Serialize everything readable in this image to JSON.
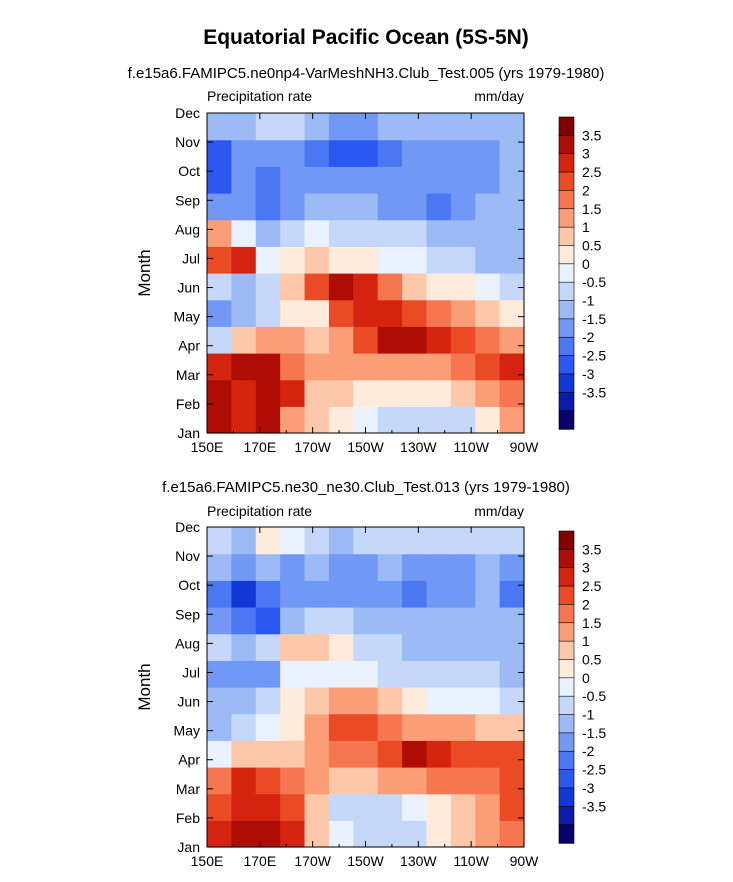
{
  "figure_title": "Equatorial Pacific Ocean (5S-5N)",
  "chart_data": [
    {
      "type": "heatmap",
      "subtitle": "f.e15a6.FAMIPC5.ne0np4-VarMeshNH3.Club_Test.005 (yrs 1979-1980)",
      "left_label": "Precipitation rate",
      "right_label": "mm/day",
      "ylabel": "Month",
      "x_ticks": [
        "150E",
        "170E",
        "170W",
        "150W",
        "130W",
        "110W",
        "90W"
      ],
      "y_ticks": [
        "Jan",
        "Feb",
        "Mar",
        "Apr",
        "May",
        "Jun",
        "Jul",
        "Aug",
        "Sep",
        "Oct",
        "Nov",
        "Dec"
      ],
      "colorbar_labels": [
        "3.5",
        "3",
        "2.5",
        "2",
        "1.5",
        "1",
        "0.5",
        "0",
        "-0.5",
        "-1",
        "-1.5",
        "-2",
        "-2.5",
        "-3",
        "-3.5"
      ],
      "x": [
        "150E",
        "160E",
        "170E",
        "180",
        "170W",
        "160W",
        "150W",
        "140W",
        "130W",
        "120W",
        "110W",
        "100W",
        "90W"
      ],
      "y": [
        "Jan",
        "Feb",
        "Mar",
        "Apr",
        "May",
        "Jun",
        "Jul",
        "Aug",
        "Sep",
        "Oct",
        "Nov",
        "Dec"
      ],
      "z": [
        [
          3.5,
          3.0,
          3.5,
          1.5,
          1.0,
          0.5,
          0.0,
          -0.5,
          -0.5,
          -0.5,
          -0.3,
          0.5,
          1.5
        ],
        [
          4.0,
          3.0,
          4.0,
          3.0,
          1.0,
          1.0,
          0.5,
          0.5,
          0.5,
          0.5,
          1.0,
          1.5,
          2.0
        ],
        [
          3.0,
          4.0,
          3.5,
          2.0,
          1.5,
          1.5,
          1.5,
          1.5,
          1.5,
          1.5,
          2.0,
          2.5,
          3.0
        ],
        [
          -0.5,
          1.0,
          1.5,
          1.5,
          1.0,
          1.5,
          2.5,
          4.0,
          3.5,
          3.0,
          2.5,
          2.0,
          1.5
        ],
        [
          -1.5,
          -1.0,
          -0.5,
          0.5,
          0.5,
          2.5,
          3.0,
          3.0,
          2.5,
          2.0,
          1.5,
          1.0,
          0.5
        ],
        [
          -0.5,
          -1.0,
          -0.5,
          1.0,
          2.5,
          3.5,
          3.0,
          2.0,
          1.0,
          0.5,
          0.5,
          0.0,
          -0.5
        ],
        [
          2.5,
          3.0,
          0.0,
          0.5,
          1.0,
          0.5,
          0.5,
          0.0,
          0.0,
          -0.5,
          -0.5,
          -1.0,
          -1.0
        ],
        [
          1.5,
          0.0,
          -1.0,
          -0.5,
          0.0,
          -0.5,
          -0.5,
          -0.5,
          -0.5,
          -1.0,
          -1.0,
          -1.0,
          -1.0
        ],
        [
          -1.5,
          -1.5,
          -2.0,
          -1.5,
          -1.0,
          -1.0,
          -1.0,
          -1.5,
          -1.5,
          -2.0,
          -1.5,
          -1.0,
          -1.0
        ],
        [
          -2.5,
          -1.5,
          -2.0,
          -1.5,
          -1.5,
          -1.5,
          -1.5,
          -1.5,
          -1.5,
          -1.5,
          -1.5,
          -1.5,
          -1.0
        ],
        [
          -2.5,
          -1.5,
          -1.5,
          -1.5,
          -2.0,
          -2.5,
          -2.5,
          -2.0,
          -1.5,
          -1.5,
          -1.5,
          -1.5,
          -1.0
        ],
        [
          -1.0,
          -1.0,
          -0.5,
          -0.5,
          -1.0,
          -1.5,
          -1.5,
          -1.0,
          -1.0,
          -1.0,
          -1.0,
          -1.0,
          -1.0
        ]
      ]
    },
    {
      "type": "heatmap",
      "subtitle": "f.e15a6.FAMIPC5.ne30_ne30.Club_Test.013 (yrs 1979-1980)",
      "left_label": "Precipitation rate",
      "right_label": "mm/day",
      "ylabel": "Month",
      "x_ticks": [
        "150E",
        "170E",
        "170W",
        "150W",
        "130W",
        "110W",
        "90W"
      ],
      "y_ticks": [
        "Jan",
        "Feb",
        "Mar",
        "Apr",
        "May",
        "Jun",
        "Jul",
        "Aug",
        "Sep",
        "Oct",
        "Nov",
        "Dec"
      ],
      "colorbar_labels": [
        "3.5",
        "3",
        "2.5",
        "2",
        "1.5",
        "1",
        "0.5",
        "0",
        "-0.5",
        "-1",
        "-1.5",
        "-2",
        "-2.5",
        "-3",
        "-3.5"
      ],
      "x": [
        "150E",
        "160E",
        "170E",
        "180",
        "170W",
        "160W",
        "150W",
        "140W",
        "130W",
        "120W",
        "110W",
        "100W",
        "90W"
      ],
      "y": [
        "Jan",
        "Feb",
        "Mar",
        "Apr",
        "May",
        "Jun",
        "Jul",
        "Aug",
        "Sep",
        "Oct",
        "Nov",
        "Dec"
      ],
      "z": [
        [
          3.0,
          4.0,
          3.5,
          3.0,
          1.0,
          0.0,
          -0.5,
          -0.5,
          -0.5,
          0.5,
          1.0,
          1.5,
          2.0
        ],
        [
          2.5,
          3.0,
          3.0,
          2.5,
          1.0,
          -0.5,
          -0.5,
          -0.5,
          0.0,
          0.5,
          1.0,
          1.5,
          2.5
        ],
        [
          2.0,
          3.0,
          2.5,
          2.0,
          1.5,
          1.0,
          1.0,
          1.5,
          1.5,
          2.0,
          2.0,
          2.0,
          2.5
        ],
        [
          0.0,
          1.0,
          1.0,
          1.0,
          1.5,
          2.0,
          2.0,
          2.5,
          3.5,
          3.0,
          2.5,
          2.5,
          2.5
        ],
        [
          -1.0,
          -0.5,
          0.0,
          0.5,
          1.5,
          2.5,
          2.5,
          2.0,
          1.5,
          1.5,
          1.5,
          1.0,
          1.0
        ],
        [
          -1.0,
          -1.0,
          -0.5,
          0.5,
          1.0,
          1.5,
          1.5,
          1.0,
          0.5,
          0.0,
          0.0,
          0.0,
          -0.5
        ],
        [
          -1.5,
          -1.5,
          -1.5,
          0.0,
          0.0,
          0.0,
          0.0,
          -0.5,
          -0.5,
          -0.5,
          -0.5,
          -0.5,
          -1.0
        ],
        [
          -0.5,
          -1.0,
          -0.5,
          1.0,
          1.0,
          0.5,
          -0.5,
          -0.5,
          -1.0,
          -1.0,
          -1.0,
          -1.0,
          -1.0
        ],
        [
          -1.5,
          -2.0,
          -2.5,
          -1.0,
          -0.5,
          -0.5,
          -1.0,
          -1.0,
          -1.0,
          -1.0,
          -1.0,
          -1.0,
          -1.0
        ],
        [
          -2.0,
          -3.0,
          -2.0,
          -1.5,
          -1.5,
          -1.5,
          -1.5,
          -1.5,
          -2.0,
          -1.5,
          -1.5,
          -1.0,
          -2.0
        ],
        [
          -1.0,
          -1.5,
          -1.0,
          -1.5,
          -1.0,
          -1.5,
          -1.5,
          -1.0,
          -1.5,
          -1.5,
          -1.5,
          -1.0,
          -1.5
        ],
        [
          -0.5,
          -1.0,
          0.5,
          0.0,
          -0.5,
          -1.0,
          -0.5,
          -0.5,
          -0.5,
          -0.5,
          -0.5,
          -0.5,
          -0.5
        ]
      ]
    }
  ],
  "colors": {
    "palette": [
      "#08006b",
      "#0a1ca8",
      "#1038d6",
      "#2a58f0",
      "#4a78f2",
      "#7098f4",
      "#9cbaf6",
      "#c6d8fa",
      "#eaf1ff",
      "#ffebdc",
      "#fdc8aa",
      "#fb9e78",
      "#f57650",
      "#ea4a24",
      "#d42410",
      "#b00c06",
      "#800000"
    ],
    "levels": [
      -3.5,
      -3,
      -2.5,
      -2,
      -1.5,
      -1,
      -0.5,
      0,
      0.5,
      1,
      1.5,
      2,
      2.5,
      3,
      3.5
    ]
  }
}
